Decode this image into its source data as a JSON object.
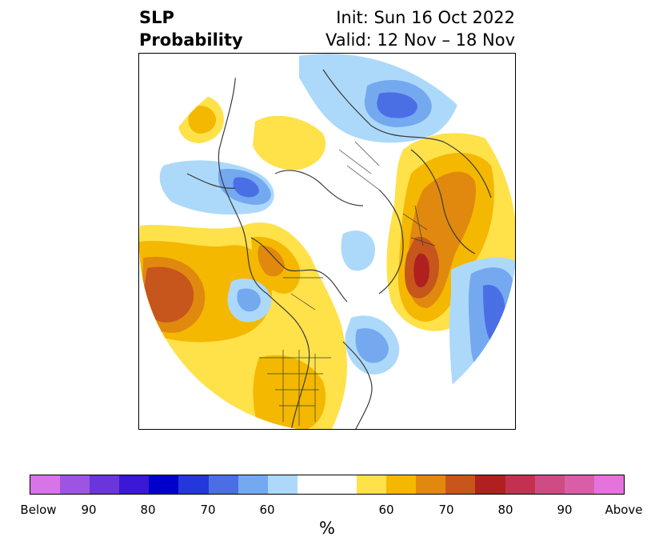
{
  "title": {
    "left_line1": "SLP",
    "left_line2": "Probability",
    "right_line1": "Init: Sun 16 Oct 2022",
    "right_line2": "Valid: 12 Nov – 18 Nov"
  },
  "colorbar": {
    "label": "%",
    "colors": [
      "#d774e8",
      "#9d55e1",
      "#6a35da",
      "#3a18d6",
      "#0000cc",
      "#2437da",
      "#4a6fe5",
      "#74a9f0",
      "#acd9fa",
      "#ffffff",
      "#ffffff",
      "#ffe14a",
      "#f4b800",
      "#e0890e",
      "#c6561b",
      "#b0201e",
      "#c23250",
      "#cd4c84",
      "#da5da8",
      "#e473dc"
    ],
    "ticks": [
      "Below",
      "90",
      "80",
      "70",
      "60",
      "60",
      "70",
      "80",
      "90",
      "Above"
    ]
  },
  "map": {
    "projection": "north-polar-stereographic",
    "variable": "sea level pressure tercile probability",
    "below_colors": [
      "#acd9fa",
      "#74a9f0",
      "#4a6fe5"
    ],
    "above_colors": [
      "#ffe14a",
      "#f4b800",
      "#e0890e",
      "#c6561b",
      "#b0201e"
    ],
    "border_color": "#3a3a3a"
  }
}
